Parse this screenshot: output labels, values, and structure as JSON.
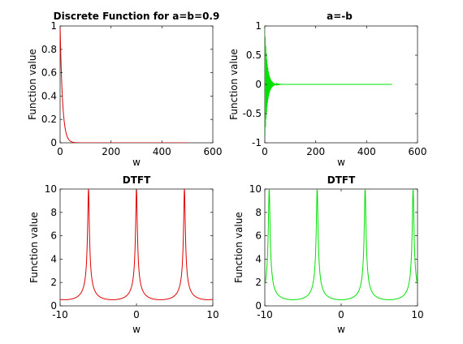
{
  "chart_data": [
    {
      "type": "line",
      "title": "Discrete Function for a=b=0.9",
      "xlabel": "w",
      "ylabel": "Function value",
      "xlim": [
        0,
        600
      ],
      "ylim": [
        0,
        1
      ],
      "xticks": [
        0,
        200,
        400,
        600
      ],
      "yticks": [
        0,
        0.2,
        0.4,
        0.6,
        0.8,
        1
      ],
      "series": [
        {
          "color": "#e00000",
          "kind": "decay",
          "base": 0.9,
          "x": [
            0,
            500
          ]
        }
      ]
    },
    {
      "type": "line",
      "title": "a=-b",
      "xlabel": "w",
      "ylabel": "Function value",
      "xlim": [
        0,
        600
      ],
      "ylim": [
        -1,
        1
      ],
      "xticks": [
        0,
        200,
        400,
        600
      ],
      "yticks": [
        -1,
        -0.5,
        0,
        0.5,
        1
      ],
      "series": [
        {
          "color": "#00e000",
          "kind": "alternating-decay",
          "base": -0.9,
          "x": [
            0,
            500
          ]
        }
      ]
    },
    {
      "type": "line",
      "title": "DTFT",
      "xlabel": "w",
      "ylabel": "Function value",
      "xlim": [
        -10,
        10
      ],
      "ylim": [
        0,
        10
      ],
      "xticks": [
        -10,
        0,
        10
      ],
      "yticks": [
        0,
        2,
        4,
        6,
        8,
        10
      ],
      "series": [
        {
          "color": "#e00000",
          "kind": "dtft-magnitude",
          "a": 0.9,
          "x": [
            -10,
            10
          ],
          "peaks_at": [
            -6.2832,
            0,
            6.2832
          ]
        }
      ]
    },
    {
      "type": "line",
      "title": "DTFT",
      "xlabel": "w",
      "ylabel": "Function value",
      "xlim": [
        -10,
        10
      ],
      "ylim": [
        0,
        10
      ],
      "xticks": [
        -10,
        0,
        10
      ],
      "yticks": [
        0,
        2,
        4,
        6,
        8,
        10
      ],
      "series": [
        {
          "color": "#00e000",
          "kind": "dtft-magnitude",
          "a": -0.9,
          "x": [
            -10,
            10
          ],
          "peaks_at": [
            -9.4248,
            -3.1416,
            3.1416,
            9.4248
          ]
        }
      ]
    }
  ]
}
